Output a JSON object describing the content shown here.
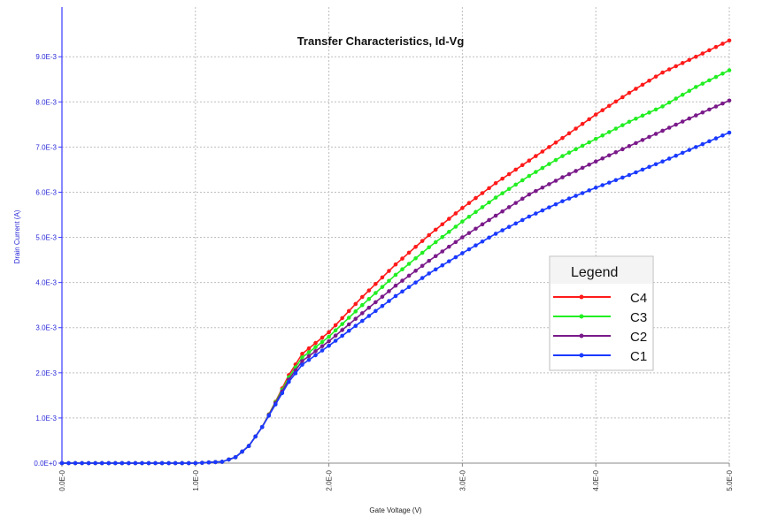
{
  "chart_data": {
    "type": "line",
    "title": "Transfer Characteristics, Id-Vg",
    "xlabel": "Gate Voltage (V)",
    "ylabel": "Drain Current (A)",
    "xlim": [
      0,
      5
    ],
    "ylim": [
      0,
      0.0101
    ],
    "x_ticks": [
      0,
      1,
      2,
      3,
      4,
      5
    ],
    "x_tick_labels": [
      "0.0E-0",
      "1.0E-0",
      "2.0E-0",
      "3.0E-0",
      "4.0E-0",
      "5.0E-0"
    ],
    "y_ticks": [
      0,
      0.001,
      0.002,
      0.003,
      0.004,
      0.005,
      0.006,
      0.007,
      0.008,
      0.009
    ],
    "y_tick_labels": [
      "0.0E+0",
      "1.0E-3",
      "2.0E-3",
      "3.0E-3",
      "4.0E-3",
      "5.0E-3",
      "6.0E-3",
      "7.0E-3",
      "8.0E-3",
      "9.0E-3"
    ],
    "grid": true,
    "legend_title": "Legend",
    "legend_position": "right",
    "x": [
      0,
      0.25,
      0.5,
      0.75,
      1.0,
      1.2,
      1.3,
      1.4,
      1.5,
      1.6,
      1.7,
      1.8,
      2.0,
      2.25,
      2.5,
      2.75,
      3.0,
      3.25,
      3.5,
      3.75,
      4.0,
      4.25,
      4.5,
      4.75,
      5.0
    ],
    "series": [
      {
        "name": "C4",
        "color": "#ff1a1a",
        "values": [
          0,
          0,
          0,
          0,
          0,
          3e-05,
          0.00013,
          0.00038,
          0.0008,
          0.00136,
          0.00195,
          0.00242,
          0.0029,
          0.00368,
          0.0044,
          0.00505,
          0.00565,
          0.0062,
          0.0067,
          0.0072,
          0.00772,
          0.0082,
          0.00865,
          0.009,
          0.00936
        ]
      },
      {
        "name": "C3",
        "color": "#22ee22",
        "values": [
          0,
          0,
          0,
          0,
          0,
          3e-05,
          0.00013,
          0.00038,
          0.0008,
          0.00135,
          0.0019,
          0.00234,
          0.0028,
          0.0035,
          0.00417,
          0.00478,
          0.00535,
          0.00588,
          0.00636,
          0.0068,
          0.00718,
          0.00756,
          0.0079,
          0.00833,
          0.0087
        ]
      },
      {
        "name": "C2",
        "color": "#7a1a8a",
        "values": [
          0,
          0,
          0,
          0,
          0,
          3e-05,
          0.00013,
          0.00038,
          0.0008,
          0.00133,
          0.00185,
          0.00226,
          0.0027,
          0.00332,
          0.00393,
          0.00448,
          0.005,
          0.00548,
          0.00595,
          0.00633,
          0.00668,
          0.00702,
          0.00736,
          0.0077,
          0.00803
        ]
      },
      {
        "name": "C1",
        "color": "#1a3aff",
        "values": [
          0,
          0,
          0,
          0,
          0,
          3e-05,
          0.00013,
          0.00038,
          0.0008,
          0.0013,
          0.0018,
          0.00218,
          0.0026,
          0.00315,
          0.0037,
          0.0042,
          0.00465,
          0.00508,
          0.00546,
          0.0058,
          0.0061,
          0.00638,
          0.00668,
          0.007,
          0.00732
        ]
      }
    ]
  }
}
